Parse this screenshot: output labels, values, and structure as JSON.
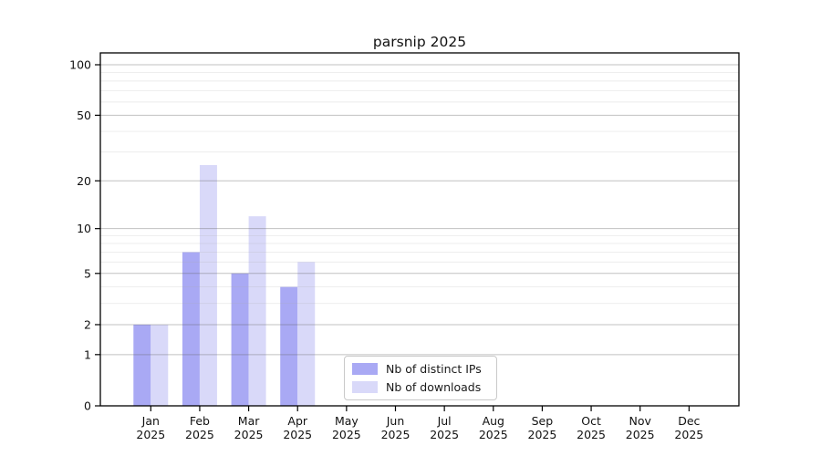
{
  "chart_data": {
    "type": "bar",
    "title": "parsnip 2025",
    "categories": [
      "Jan",
      "Feb",
      "Mar",
      "Apr",
      "May",
      "Jun",
      "Jul",
      "Aug",
      "Sep",
      "Oct",
      "Nov",
      "Dec"
    ],
    "year_label": "2025",
    "series": [
      {
        "name": "Nb of distinct IPs",
        "color": "#a9a9f4",
        "values": [
          2,
          7,
          5,
          4,
          0,
          0,
          0,
          0,
          0,
          0,
          0,
          0
        ]
      },
      {
        "name": "Nb of downloads",
        "color": "#d9d9f9",
        "values": [
          2,
          25,
          12,
          6,
          0,
          0,
          0,
          0,
          0,
          0,
          0,
          0
        ]
      }
    ],
    "yscale": "log1p",
    "yticks": [
      0,
      1,
      2,
      5,
      10,
      20,
      50,
      100
    ],
    "minor_yticks": [
      3,
      4,
      6,
      7,
      8,
      9,
      30,
      40,
      60,
      70,
      80,
      90
    ],
    "ylim": [
      0,
      118
    ],
    "grid": true,
    "legend_position": "lower-center",
    "colors": {
      "axis": "#000000",
      "major_grid": "#c4c4c4",
      "minor_grid": "#ececec",
      "text": "#111111"
    }
  }
}
